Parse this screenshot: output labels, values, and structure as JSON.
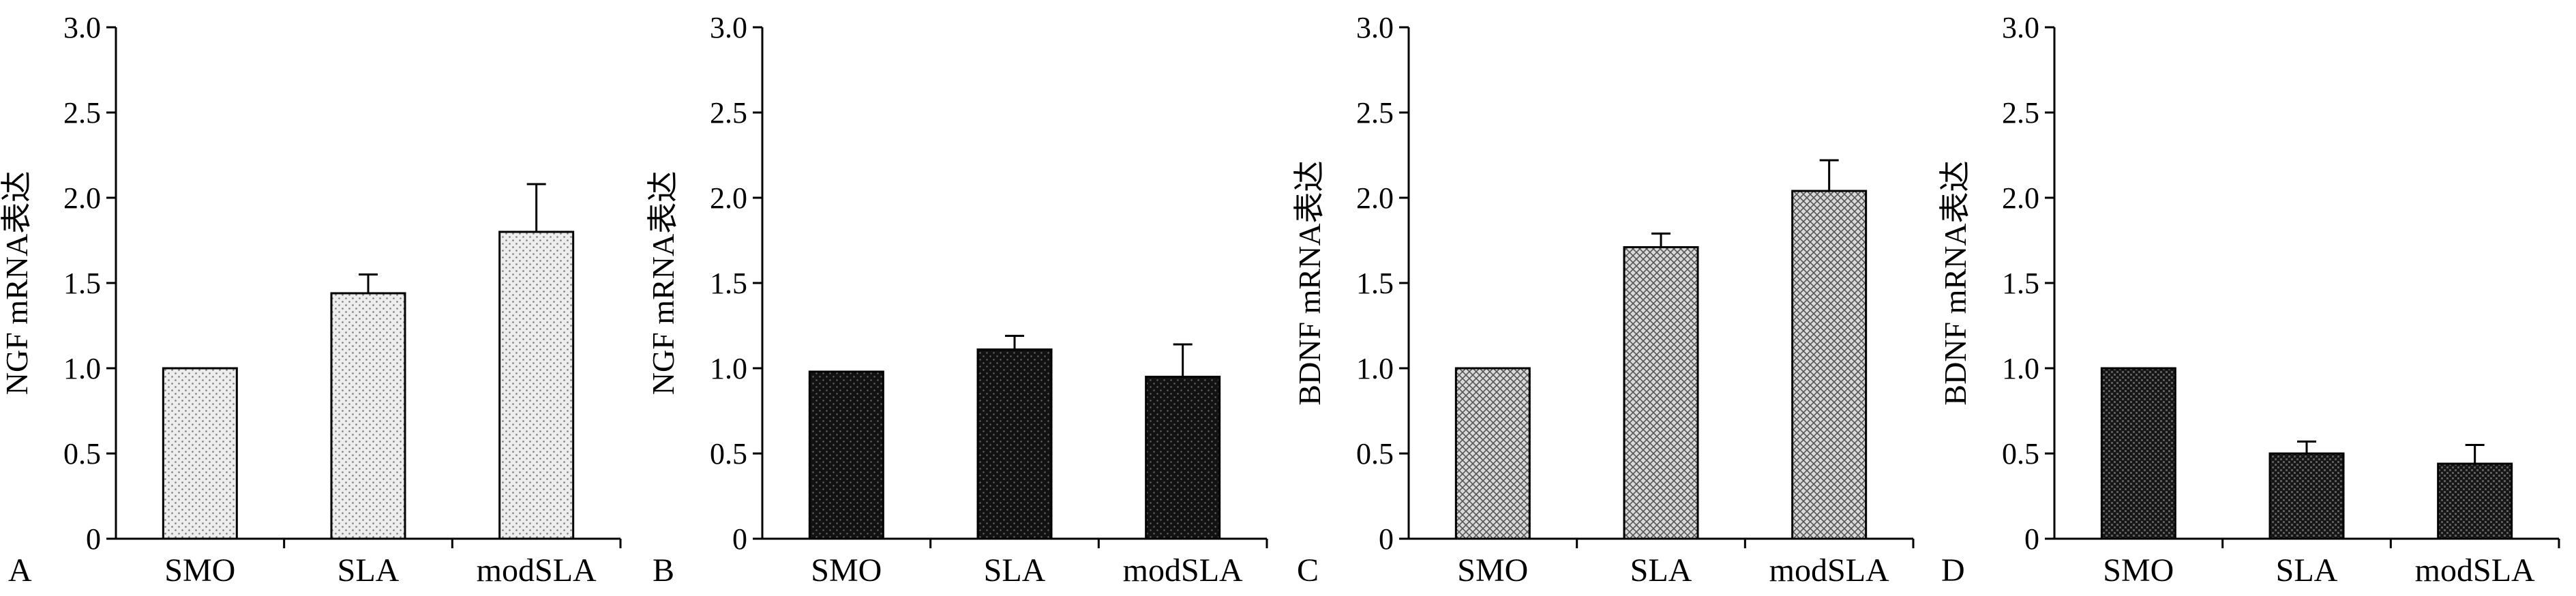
{
  "chart_data": [
    {
      "type": "bar",
      "panel_label": "A",
      "ylabel": "NGF mRNA表达",
      "categories": [
        "SMO",
        "SLA",
        "modSLA"
      ],
      "values": [
        1.0,
        1.44,
        1.8
      ],
      "errors": [
        0.0,
        0.11,
        0.28
      ],
      "ylim": [
        0,
        3.0
      ],
      "yticks": [
        "0",
        "0.5",
        "1.0",
        "1.5",
        "2.0",
        "2.5",
        "3.0"
      ],
      "bar_fill": "#e6e6e6",
      "pattern": "dots"
    },
    {
      "type": "bar",
      "panel_label": "B",
      "ylabel": "NGF mRNA表达",
      "categories": [
        "SMO",
        "SLA",
        "modSLA"
      ],
      "values": [
        0.98,
        1.11,
        0.95
      ],
      "errors": [
        0.0,
        0.08,
        0.19
      ],
      "ylim": [
        0,
        3.0
      ],
      "yticks": [
        "0",
        "0.5",
        "1.0",
        "1.5",
        "2.0",
        "2.5",
        "3.0"
      ],
      "bar_fill": "#111111",
      "pattern": "dark-dots"
    },
    {
      "type": "bar",
      "panel_label": "C",
      "ylabel": "BDNF mRNA表达",
      "categories": [
        "SMO",
        "SLA",
        "modSLA"
      ],
      "values": [
        1.0,
        1.71,
        2.04
      ],
      "errors": [
        0.0,
        0.08,
        0.18
      ],
      "ylim": [
        0,
        3.0
      ],
      "yticks": [
        "0",
        "0.5",
        "1.0",
        "1.5",
        "2.0",
        "2.5",
        "3.0"
      ],
      "bar_fill": "#bdbdbd",
      "pattern": "crosshatch"
    },
    {
      "type": "bar",
      "panel_label": "D",
      "ylabel": "BDNF mRNA表达",
      "categories": [
        "SMO",
        "SLA",
        "modSLA"
      ],
      "values": [
        1.0,
        0.5,
        0.44
      ],
      "errors": [
        0.0,
        0.07,
        0.11
      ],
      "ylim": [
        0,
        3.0
      ],
      "yticks": [
        "0",
        "0.5",
        "1.0",
        "1.5",
        "2.0",
        "2.5",
        "3.0"
      ],
      "bar_fill": "#1a1a1a",
      "pattern": "dark-checker"
    }
  ]
}
